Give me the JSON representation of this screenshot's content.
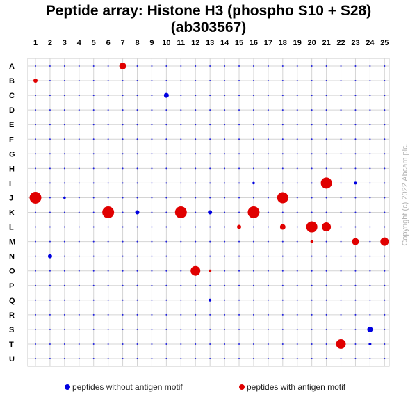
{
  "chart_data": {
    "type": "scatter",
    "title": "Peptide array:  Histone H3 (phospho S10 + S28)(ab303567)",
    "columns": [
      "1",
      "2",
      "3",
      "4",
      "5",
      "6",
      "7",
      "8",
      "9",
      "10",
      "11",
      "12",
      "13",
      "14",
      "15",
      "16",
      "17",
      "18",
      "19",
      "20",
      "21",
      "22",
      "23",
      "24",
      "25"
    ],
    "rows": [
      "A",
      "B",
      "C",
      "D",
      "E",
      "F",
      "G",
      "H",
      "I",
      "J",
      "K",
      "L",
      "M",
      "N",
      "O",
      "P",
      "Q",
      "R",
      "S",
      "T",
      "U"
    ],
    "grid": true,
    "series": [
      {
        "name": "peptides without antigen motif",
        "color": "#0000e0"
      },
      {
        "name": "peptides with antigen motif",
        "color": "#e00000"
      }
    ],
    "points": [
      {
        "row": "A",
        "col": 7,
        "size": 5,
        "series": 1
      },
      {
        "row": "B",
        "col": 1,
        "size": 3,
        "series": 1
      },
      {
        "row": "C",
        "col": 10,
        "size": 3.5,
        "series": 0
      },
      {
        "row": "I",
        "col": 16,
        "size": 1.8,
        "series": 0
      },
      {
        "row": "I",
        "col": 21,
        "size": 8,
        "series": 1
      },
      {
        "row": "I",
        "col": 23,
        "size": 2,
        "series": 0
      },
      {
        "row": "J",
        "col": 1,
        "size": 8.5,
        "series": 1
      },
      {
        "row": "J",
        "col": 3,
        "size": 1.8,
        "series": 0
      },
      {
        "row": "J",
        "col": 18,
        "size": 8,
        "series": 1
      },
      {
        "row": "K",
        "col": 6,
        "size": 8.5,
        "series": 1
      },
      {
        "row": "K",
        "col": 8,
        "size": 3,
        "series": 0
      },
      {
        "row": "K",
        "col": 11,
        "size": 8.5,
        "series": 1
      },
      {
        "row": "K",
        "col": 13,
        "size": 3,
        "series": 0
      },
      {
        "row": "K",
        "col": 16,
        "size": 8.5,
        "series": 1
      },
      {
        "row": "L",
        "col": 15,
        "size": 3,
        "series": 1
      },
      {
        "row": "L",
        "col": 18,
        "size": 4,
        "series": 1
      },
      {
        "row": "L",
        "col": 20,
        "size": 8,
        "series": 1
      },
      {
        "row": "L",
        "col": 21,
        "size": 6.5,
        "series": 1
      },
      {
        "row": "M",
        "col": 20,
        "size": 2,
        "series": 1
      },
      {
        "row": "M",
        "col": 23,
        "size": 5,
        "series": 1
      },
      {
        "row": "M",
        "col": 25,
        "size": 6,
        "series": 1
      },
      {
        "row": "N",
        "col": 2,
        "size": 3,
        "series": 0
      },
      {
        "row": "O",
        "col": 12,
        "size": 7,
        "series": 1
      },
      {
        "row": "O",
        "col": 13,
        "size": 2,
        "series": 1
      },
      {
        "row": "Q",
        "col": 13,
        "size": 2,
        "series": 0
      },
      {
        "row": "S",
        "col": 24,
        "size": 4,
        "series": 0
      },
      {
        "row": "T",
        "col": 22,
        "size": 7,
        "series": 1
      },
      {
        "row": "T",
        "col": 24,
        "size": 2,
        "series": 0
      }
    ]
  },
  "legend": {
    "without_label": "peptides without antigen motif",
    "with_label": "peptides with antigen motif"
  },
  "copyright": "Copyright (c) 2022 Abcam plc."
}
